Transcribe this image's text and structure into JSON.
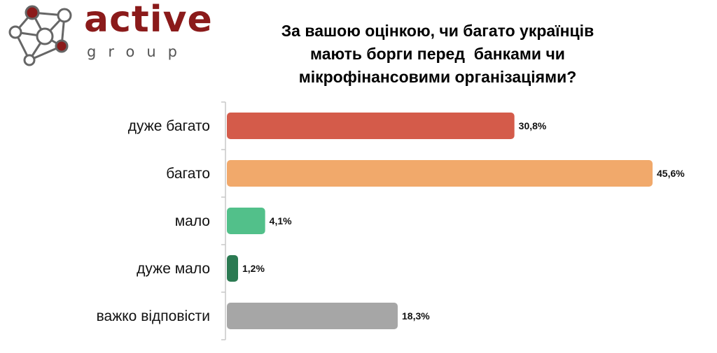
{
  "logo": {
    "word": "active",
    "sub": "group",
    "colors": {
      "word": "#8b1a1a",
      "sub": "#555555",
      "node_dark": "#8b1a1a",
      "node_light": "#ffffff",
      "line": "#666666"
    }
  },
  "chart_data": {
    "type": "bar",
    "orientation": "horizontal",
    "title_lines": [
      "За вашою оцінкою, чи багато українців",
      "мають борги перед  банками чи",
      "мікрофінансовими організаціями?"
    ],
    "categories": [
      "дуже багато",
      "багато",
      "мало",
      "дуже мало",
      "важко відповісти"
    ],
    "values": [
      30.8,
      45.6,
      4.1,
      1.2,
      18.3
    ],
    "value_labels": [
      "30,8%",
      "45,6%",
      "4,1%",
      "1,2%",
      "18,3%"
    ],
    "colors": [
      "#d45b4a",
      "#f1a96b",
      "#52c08a",
      "#2b7a52",
      "#a6a6a6"
    ],
    "xlim": [
      0,
      46.5
    ],
    "xlabel": "",
    "ylabel": "",
    "grid": false,
    "legend": "none"
  }
}
